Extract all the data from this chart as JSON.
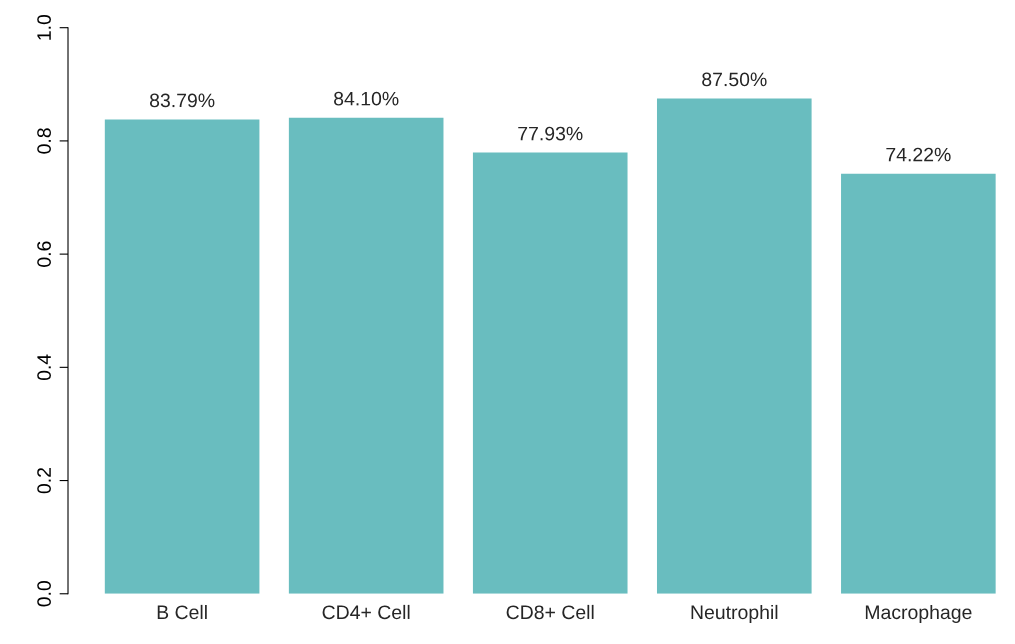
{
  "chart_data": {
    "type": "bar",
    "categories": [
      "B Cell",
      "CD4+ Cell",
      "CD8+ Cell",
      "Neutrophil",
      "Macrophage"
    ],
    "values": [
      0.8379,
      0.841,
      0.7793,
      0.875,
      0.7422
    ],
    "value_labels": [
      "83.79%",
      "84.10%",
      "77.93%",
      "87.50%",
      "74.22%"
    ],
    "color": "#69bdbf",
    "ylim": [
      0,
      1.0
    ],
    "yticks": [
      {
        "value": 0,
        "label": "0.0"
      },
      {
        "value": 0.2,
        "label": "0.2"
      },
      {
        "value": 0.4,
        "label": "0.4"
      },
      {
        "value": 0.6,
        "label": "0.6"
      },
      {
        "value": 0.8,
        "label": "0.8"
      },
      {
        "value": 1.0,
        "label": "1.0"
      }
    ],
    "grid": false,
    "legend": false
  }
}
